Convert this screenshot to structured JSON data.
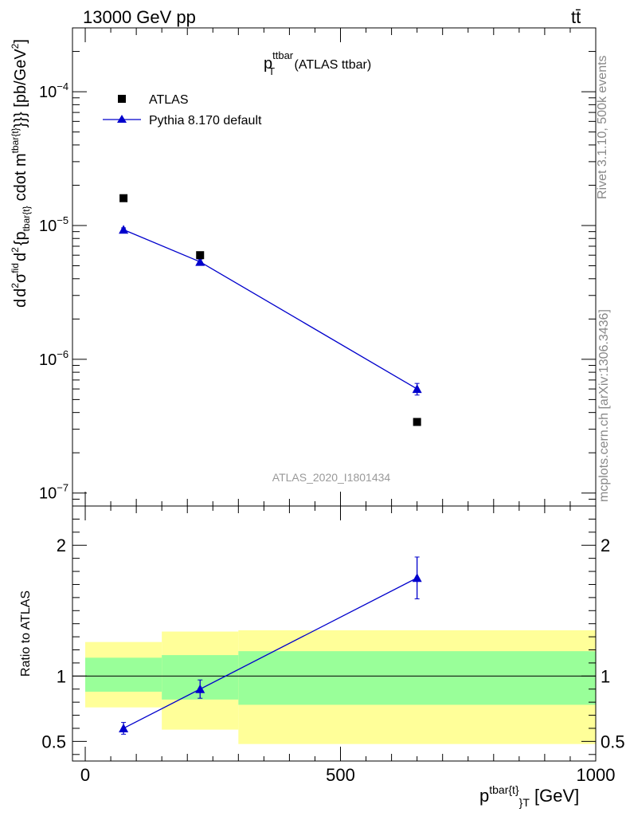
{
  "header": {
    "energy_label": "13000 GeV pp",
    "process_label": "tt̄"
  },
  "side_labels": {
    "rivet": "Rivet 3.1.10,  500k events",
    "mcplots": "mcplots.cern.ch [arXiv:1306.3436]"
  },
  "chart_data": {
    "type": "scatter",
    "title": {
      "main": "p",
      "sup": "ttbar",
      "sub": "T",
      "suffix": " (ATLAS ttbar)"
    },
    "analysis_label": "ATLAS_2020_I1801434",
    "xlabel": {
      "main": "p",
      "sup": "tbar{t}",
      "sub": "}",
      "sub2": "T",
      "suffix": " [GeV]"
    },
    "ylabel": {
      "p1": "d",
      "p2": "d",
      "sup2": "2",
      "p3": "σ",
      "sup3": "fid",
      "p4": "d",
      "sup4": "2",
      "p5": "{p",
      "sub5": "tbar{t}",
      "p6": "cdot m",
      "sup6": "tbar{t}",
      "p7": "}}} [pb/GeV",
      "sup7": "2",
      "p8": "]"
    },
    "ratio_ylabel": "Ratio to ATLAS",
    "xlim": [
      -25,
      1000
    ],
    "ylim_log": [
      8e-08,
      0.0003
    ],
    "ratio_ylim": [
      0.35,
      2.3
    ],
    "x_ticks": [
      {
        "v": 0,
        "label": "0"
      },
      {
        "v": 500,
        "label": "500"
      },
      {
        "v": 1000,
        "label": "1000"
      }
    ],
    "y_ticks": [
      {
        "exp": -7,
        "base": "10",
        "sup": "−7"
      },
      {
        "exp": -6,
        "base": "10",
        "sup": "−6"
      },
      {
        "exp": -5,
        "base": "10",
        "sup": "−5"
      },
      {
        "exp": -4,
        "base": "10",
        "sup": "−4"
      }
    ],
    "ratio_ticks": [
      {
        "v": 0.5,
        "label": "0.5"
      },
      {
        "v": 1,
        "label": "1"
      },
      {
        "v": 2,
        "label": "2"
      }
    ],
    "series": [
      {
        "name": "ATLAS",
        "color": "#000000",
        "marker": "square",
        "x": [
          75,
          225,
          650
        ],
        "y": [
          1.6e-05,
          6e-06,
          3.4e-07
        ]
      },
      {
        "name": "Pythia 8.170 default",
        "color": "#0000cc",
        "marker": "triangle",
        "x": [
          75,
          225,
          650
        ],
        "y": [
          9.3e-06,
          5.35e-06,
          6e-07
        ],
        "yerr_lo": [
          3e-07,
          2.5e-07,
          6e-08
        ],
        "yerr_hi": [
          3e-07,
          2.5e-07,
          6e-08
        ]
      }
    ],
    "ratio": {
      "x": [
        75,
        225,
        650
      ],
      "values": [
        0.6,
        0.9,
        1.75
      ],
      "err": [
        0.045,
        0.07,
        0.16
      ]
    },
    "bands": [
      {
        "x0": 0,
        "x1": 150,
        "green": [
          0.88,
          1.14
        ],
        "yellow": [
          0.76,
          1.26
        ]
      },
      {
        "x0": 150,
        "x1": 300,
        "green": [
          0.82,
          1.16
        ],
        "yellow": [
          0.59,
          1.34
        ]
      },
      {
        "x0": 300,
        "x1": 1000,
        "green": [
          0.78,
          1.19
        ],
        "yellow": [
          0.48,
          1.35
        ]
      }
    ],
    "band_colors": {
      "green": "#99ff99",
      "yellow": "#ffff99"
    }
  }
}
